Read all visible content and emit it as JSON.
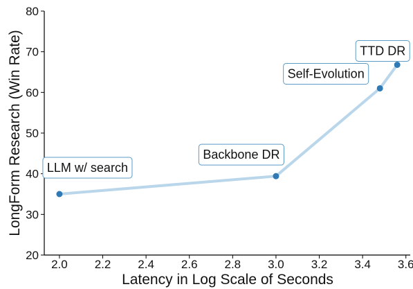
{
  "chart_data": {
    "type": "line",
    "xlabel": "Latency in Log Scale of Seconds",
    "ylabel": "LongForm Research (Win Rate)",
    "xlim": [
      1.93,
      3.62
    ],
    "ylim": [
      20,
      80
    ],
    "xticks": [
      "2.0",
      "2.2",
      "2.4",
      "2.6",
      "2.8",
      "3.0",
      "3.2",
      "3.4",
      "3.6"
    ],
    "yticks": [
      "20",
      "30",
      "40",
      "50",
      "60",
      "70",
      "80"
    ],
    "grid": false,
    "line_color": "#b9d6eb",
    "marker_color": "#2f7ab5",
    "label_border_color": "#5b9bc6",
    "points": [
      {
        "x": 2.0,
        "y": 35.0,
        "label": "LLM w/ search"
      },
      {
        "x": 3.0,
        "y": 39.4,
        "label": "Backbone DR"
      },
      {
        "x": 3.48,
        "y": 61.0,
        "label": "Self-Evolution"
      },
      {
        "x": 3.56,
        "y": 66.8,
        "label": "TTD DR"
      }
    ]
  }
}
